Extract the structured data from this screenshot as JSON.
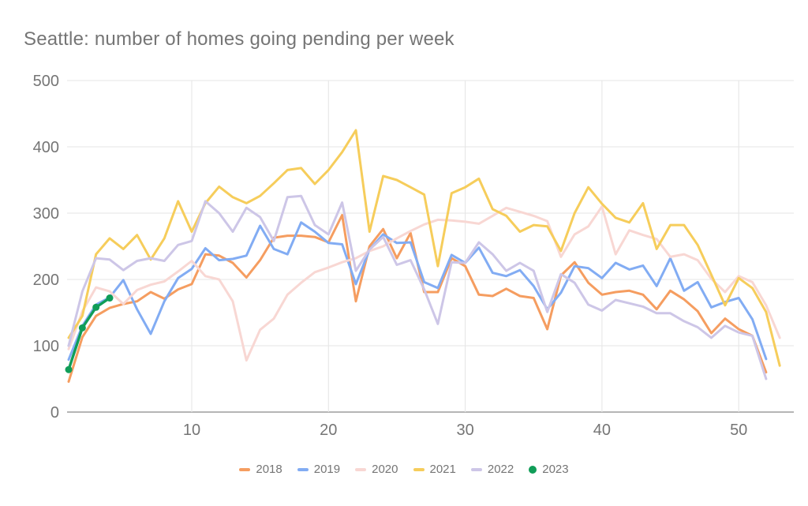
{
  "title": "Seattle: number of homes going pending per week",
  "axis": {
    "x_tick_labels": [
      "10",
      "20",
      "30",
      "40",
      "50"
    ],
    "y_tick_labels": [
      "0",
      "100",
      "200",
      "300",
      "400",
      "500"
    ]
  },
  "chart_data": {
    "type": "line",
    "title": "Seattle: number of homes going pending per week",
    "xlabel": "",
    "ylabel": "",
    "x_unit": "week of year",
    "x_ticks": [
      10,
      20,
      30,
      40,
      50
    ],
    "y_ticks": [
      0,
      100,
      200,
      300,
      400,
      500
    ],
    "xlim": [
      1,
      53
    ],
    "ylim": [
      0,
      500
    ],
    "grid": true,
    "legend_position": "bottom",
    "series": [
      {
        "name": "2018",
        "color": "#f59d60",
        "marker": "none",
        "values": [
          46,
          113,
          145,
          157,
          163,
          167,
          181,
          171,
          185,
          193,
          238,
          236,
          225,
          203,
          229,
          263,
          266,
          266,
          264,
          256,
          297,
          167,
          250,
          276,
          232,
          270,
          181,
          181,
          232,
          220,
          177,
          175,
          186,
          175,
          172,
          125,
          206,
          226,
          195,
          177,
          181,
          183,
          177,
          155,
          183,
          170,
          152,
          119,
          141,
          125,
          115,
          60
        ]
      },
      {
        "name": "2019",
        "color": "#82acf3",
        "marker": "none",
        "values": [
          79,
          130,
          162,
          173,
          199,
          155,
          118,
          167,
          202,
          216,
          247,
          229,
          231,
          236,
          281,
          246,
          238,
          286,
          272,
          255,
          253,
          193,
          245,
          268,
          255,
          256,
          196,
          187,
          237,
          225,
          248,
          210,
          205,
          214,
          190,
          155,
          180,
          220,
          217,
          202,
          225,
          215,
          221,
          190,
          232,
          183,
          196,
          158,
          166,
          172,
          140,
          80
        ]
      },
      {
        "name": "2020",
        "color": "#f8d7d3",
        "marker": "none",
        "values": [
          95,
          152,
          188,
          182,
          163,
          184,
          192,
          197,
          212,
          228,
          205,
          200,
          167,
          78,
          124,
          141,
          177,
          195,
          211,
          218,
          226,
          232,
          243,
          250,
          262,
          273,
          283,
          290,
          289,
          287,
          284,
          296,
          308,
          302,
          296,
          288,
          234,
          268,
          280,
          310,
          238,
          274,
          267,
          261,
          234,
          238,
          229,
          201,
          181,
          205,
          196,
          161,
          112
        ]
      },
      {
        "name": "2021",
        "color": "#f6cd5b",
        "marker": "none",
        "values": [
          112,
          145,
          238,
          262,
          246,
          267,
          230,
          262,
          318,
          272,
          315,
          340,
          324,
          315,
          326,
          345,
          365,
          368,
          344,
          365,
          392,
          425,
          272,
          356,
          350,
          339,
          328,
          220,
          330,
          339,
          352,
          306,
          296,
          272,
          282,
          280,
          243,
          300,
          339,
          314,
          293,
          286,
          315,
          246,
          282,
          282,
          252,
          207,
          161,
          202,
          187,
          151,
          70
        ]
      },
      {
        "name": "2022",
        "color": "#cdc6e7",
        "marker": "none",
        "values": [
          100,
          182,
          232,
          230,
          214,
          228,
          232,
          228,
          252,
          258,
          318,
          300,
          272,
          308,
          294,
          258,
          324,
          326,
          282,
          268,
          316,
          213,
          245,
          264,
          222,
          229,
          185,
          133,
          226,
          225,
          256,
          238,
          213,
          225,
          213,
          151,
          208,
          195,
          162,
          153,
          169,
          164,
          159,
          149,
          149,
          137,
          128,
          112,
          130,
          120,
          115,
          50
        ]
      },
      {
        "name": "2023",
        "color": "#109d58",
        "marker": "circle",
        "values": [
          64,
          127,
          158,
          172
        ]
      }
    ]
  },
  "style": {
    "title_color": "#757575",
    "tick_label_color": "#757575",
    "gridline_color": "#e6e6e6",
    "baseline_color": "#9e9e9e",
    "background": "#ffffff"
  }
}
